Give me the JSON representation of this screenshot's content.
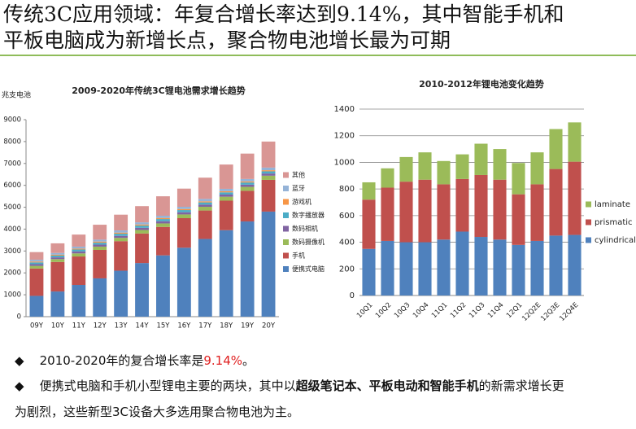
{
  "title": "传统3C应用领域：年复合增长率达到9.14%，其中智能手机和平板电脑成为新增长点，聚合物电池增长最为可期",
  "chart_data": [
    {
      "type": "bar",
      "stacked": true,
      "title": "2009-2020年传统3C锂电池需求增长趋势",
      "y_label": "兆支电池",
      "categories": [
        "09Y",
        "10Y",
        "11Y",
        "12Y",
        "13Y",
        "14Y",
        "15Y",
        "16Y",
        "17Y",
        "18Y",
        "19Y",
        "20Y"
      ],
      "series": [
        {
          "name": "便携式电脑",
          "color": "#4f81bd",
          "values": [
            950,
            1150,
            1450,
            1750,
            2100,
            2450,
            2800,
            3150,
            3550,
            3950,
            4350,
            4800
          ]
        },
        {
          "name": "手机",
          "color": "#c0504d",
          "values": [
            1250,
            1350,
            1300,
            1300,
            1350,
            1350,
            1300,
            1350,
            1300,
            1350,
            1400,
            1450
          ]
        },
        {
          "name": "数码摄像机",
          "color": "#9bbb59",
          "values": [
            120,
            130,
            140,
            150,
            150,
            160,
            160,
            170,
            170,
            180,
            180,
            190
          ]
        },
        {
          "name": "数码相机",
          "color": "#8064a2",
          "values": [
            80,
            80,
            90,
            90,
            90,
            100,
            100,
            100,
            100,
            100,
            100,
            100
          ]
        },
        {
          "name": "数字播放器",
          "color": "#4bacc6",
          "values": [
            80,
            80,
            90,
            90,
            100,
            100,
            100,
            100,
            100,
            100,
            100,
            100
          ]
        },
        {
          "name": "游戏机",
          "color": "#f79646",
          "values": [
            40,
            40,
            40,
            50,
            50,
            50,
            50,
            50,
            50,
            50,
            50,
            50
          ]
        },
        {
          "name": "蓝牙",
          "color": "#95b3d7",
          "values": [
            80,
            80,
            90,
            90,
            100,
            100,
            100,
            100,
            110,
            110,
            110,
            120
          ]
        },
        {
          "name": "其他",
          "color": "#d99694",
          "values": [
            350,
            440,
            550,
            680,
            720,
            740,
            890,
            830,
            970,
            1110,
            1160,
            1190
          ]
        }
      ],
      "ylim": [
        0,
        9000
      ],
      "yticks": [
        0,
        1000,
        2000,
        3000,
        4000,
        5000,
        6000,
        7000,
        8000,
        9000
      ],
      "grid": false,
      "legend": "right"
    },
    {
      "type": "bar",
      "stacked": true,
      "title": "2010-2012年锂电池变化趋势",
      "categories": [
        "10Q1",
        "10Q2",
        "10Q3",
        "10Q4",
        "11Q1",
        "11Q2",
        "11Q3",
        "11Q4",
        "12Q1",
        "12Q2E",
        "12Q3E",
        "12Q4E"
      ],
      "series": [
        {
          "name": "cylindrical",
          "color": "#4f81bd",
          "values": [
            350,
            410,
            400,
            400,
            420,
            480,
            440,
            420,
            380,
            410,
            450,
            455
          ]
        },
        {
          "name": "prismatic",
          "color": "#c0504d",
          "values": [
            370,
            400,
            455,
            470,
            415,
            395,
            465,
            450,
            380,
            425,
            500,
            550
          ]
        },
        {
          "name": "laminate",
          "color": "#9bbb59",
          "values": [
            130,
            145,
            185,
            205,
            175,
            185,
            235,
            230,
            235,
            240,
            300,
            295
          ]
        }
      ],
      "ylim": [
        0,
        1400
      ],
      "yticks": [
        0,
        200,
        400,
        600,
        800,
        1000,
        1200,
        1400
      ],
      "grid": true,
      "legend": "right"
    }
  ],
  "bullets": [
    [
      "2010-2020年的复合增长率是",
      "9.14%",
      "。"
    ],
    [
      "便携式电脑和手机小型锂电主要的两块，其中以",
      "超级笔记本、平板电动和智能手机",
      "的新需求增长更为剧烈，这些新型3C设备大多选用聚合物电池为主。"
    ]
  ]
}
